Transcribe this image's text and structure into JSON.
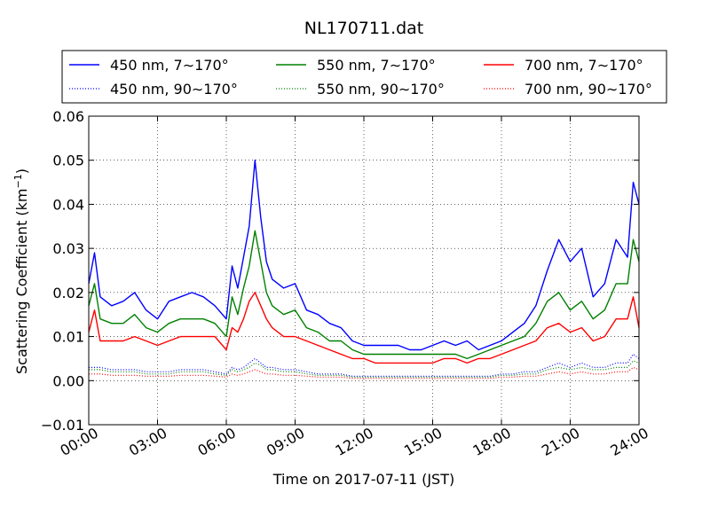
{
  "chart_data": {
    "type": "line",
    "title": "NL170711.dat",
    "xlabel": "Time on 2017-07-11 (JST)",
    "ylabel": "Scattering Coefficient (km",
    "ylabel_sup": "−1",
    "ylabel_end": ")",
    "xlim_hours": [
      0,
      24
    ],
    "ylim": [
      -0.01,
      0.06
    ],
    "x_ticks": [
      "00:00",
      "03:00",
      "06:00",
      "09:00",
      "12:00",
      "15:00",
      "18:00",
      "21:00",
      "24:00"
    ],
    "y_ticks": [
      "−0.01",
      "0.00",
      "0.01",
      "0.02",
      "0.03",
      "0.04",
      "0.05",
      "0.06"
    ],
    "grid": true,
    "legend_placement": "top (above plot)",
    "x_hours": [
      0,
      0.25,
      0.5,
      1,
      1.5,
      2,
      2.5,
      3,
      3.5,
      4,
      4.5,
      5,
      5.5,
      6,
      6.25,
      6.5,
      6.75,
      7,
      7.25,
      7.5,
      7.75,
      8,
      8.5,
      9,
      9.5,
      10,
      10.5,
      11,
      11.5,
      12,
      12.5,
      13,
      13.5,
      14,
      14.5,
      15,
      15.5,
      16,
      16.5,
      17,
      17.5,
      18,
      18.5,
      19,
      19.5,
      20,
      20.5,
      21,
      21.5,
      22,
      22.5,
      23,
      23.5,
      23.75,
      24
    ],
    "series": [
      {
        "name": "450 nm, 7∼170°",
        "color": "#0000ff",
        "style": "solid",
        "values": [
          0.022,
          0.029,
          0.019,
          0.017,
          0.018,
          0.02,
          0.016,
          0.014,
          0.018,
          0.019,
          0.02,
          0.019,
          0.017,
          0.014,
          0.026,
          0.021,
          0.028,
          0.035,
          0.05,
          0.037,
          0.027,
          0.023,
          0.021,
          0.022,
          0.016,
          0.015,
          0.013,
          0.012,
          0.009,
          0.008,
          0.008,
          0.008,
          0.008,
          0.007,
          0.007,
          0.008,
          0.009,
          0.008,
          0.009,
          0.007,
          0.008,
          0.009,
          0.011,
          0.013,
          0.017,
          0.025,
          0.032,
          0.027,
          0.03,
          0.019,
          0.022,
          0.032,
          0.028,
          0.045,
          0.04
        ]
      },
      {
        "name": "550 nm, 7∼170°",
        "color": "#008000",
        "style": "solid",
        "values": [
          0.017,
          0.022,
          0.014,
          0.013,
          0.013,
          0.015,
          0.012,
          0.011,
          0.013,
          0.014,
          0.014,
          0.014,
          0.013,
          0.01,
          0.019,
          0.015,
          0.021,
          0.026,
          0.034,
          0.027,
          0.02,
          0.017,
          0.015,
          0.016,
          0.012,
          0.011,
          0.009,
          0.009,
          0.007,
          0.006,
          0.006,
          0.006,
          0.006,
          0.006,
          0.006,
          0.006,
          0.006,
          0.006,
          0.005,
          0.006,
          0.007,
          0.008,
          0.009,
          0.01,
          0.013,
          0.018,
          0.02,
          0.016,
          0.018,
          0.014,
          0.016,
          0.022,
          0.022,
          0.032,
          0.027
        ]
      },
      {
        "name": "700 nm, 7∼170°",
        "color": "#ff0000",
        "style": "solid",
        "values": [
          0.011,
          0.016,
          0.009,
          0.009,
          0.009,
          0.01,
          0.009,
          0.008,
          0.009,
          0.01,
          0.01,
          0.01,
          0.01,
          0.007,
          0.012,
          0.011,
          0.014,
          0.018,
          0.02,
          0.017,
          0.014,
          0.012,
          0.01,
          0.01,
          0.009,
          0.008,
          0.007,
          0.006,
          0.005,
          0.005,
          0.004,
          0.004,
          0.004,
          0.004,
          0.004,
          0.004,
          0.005,
          0.005,
          0.004,
          0.005,
          0.005,
          0.006,
          0.007,
          0.008,
          0.009,
          0.012,
          0.013,
          0.011,
          0.012,
          0.009,
          0.01,
          0.014,
          0.014,
          0.019,
          0.012
        ]
      },
      {
        "name": "450 nm, 90∼170°",
        "color": "#0000ff",
        "style": "dotted",
        "values": [
          0.003,
          0.003,
          0.003,
          0.0025,
          0.0025,
          0.0025,
          0.002,
          0.002,
          0.002,
          0.0025,
          0.0025,
          0.0025,
          0.002,
          0.0015,
          0.003,
          0.0025,
          0.003,
          0.004,
          0.005,
          0.004,
          0.003,
          0.003,
          0.0025,
          0.0025,
          0.002,
          0.0015,
          0.0015,
          0.0015,
          0.001,
          0.001,
          0.001,
          0.001,
          0.001,
          0.001,
          0.001,
          0.001,
          0.001,
          0.001,
          0.001,
          0.001,
          0.001,
          0.0015,
          0.0015,
          0.002,
          0.002,
          0.003,
          0.004,
          0.003,
          0.004,
          0.003,
          0.003,
          0.004,
          0.004,
          0.006,
          0.005
        ]
      },
      {
        "name": "550 nm, 90∼170°",
        "color": "#008000",
        "style": "dotted",
        "values": [
          0.0025,
          0.0025,
          0.0025,
          0.002,
          0.002,
          0.002,
          0.0015,
          0.0015,
          0.0015,
          0.002,
          0.002,
          0.002,
          0.0015,
          0.0012,
          0.0025,
          0.002,
          0.0025,
          0.003,
          0.004,
          0.0035,
          0.0025,
          0.0025,
          0.002,
          0.002,
          0.0015,
          0.0012,
          0.0012,
          0.0012,
          0.0008,
          0.0008,
          0.0008,
          0.0008,
          0.0008,
          0.0008,
          0.0008,
          0.0008,
          0.0008,
          0.0008,
          0.0008,
          0.0008,
          0.0008,
          0.0012,
          0.0012,
          0.0015,
          0.0015,
          0.0025,
          0.003,
          0.0025,
          0.003,
          0.0025,
          0.0025,
          0.003,
          0.003,
          0.0045,
          0.004
        ]
      },
      {
        "name": "700 nm, 90∼170°",
        "color": "#ff0000",
        "style": "dotted",
        "values": [
          0.0015,
          0.0015,
          0.0015,
          0.0012,
          0.0012,
          0.0012,
          0.001,
          0.001,
          0.001,
          0.0012,
          0.0012,
          0.0012,
          0.001,
          0.0008,
          0.0015,
          0.0012,
          0.0015,
          0.002,
          0.0025,
          0.002,
          0.0015,
          0.0015,
          0.0012,
          0.0012,
          0.001,
          0.0008,
          0.0008,
          0.0008,
          0.0005,
          0.0005,
          0.0005,
          0.0005,
          0.0005,
          0.0005,
          0.0005,
          0.0005,
          0.0005,
          0.0005,
          0.0005,
          0.0005,
          0.0005,
          0.0008,
          0.0008,
          0.001,
          0.001,
          0.0015,
          0.002,
          0.0015,
          0.002,
          0.0015,
          0.0015,
          0.002,
          0.002,
          0.003,
          0.0025
        ]
      }
    ]
  }
}
